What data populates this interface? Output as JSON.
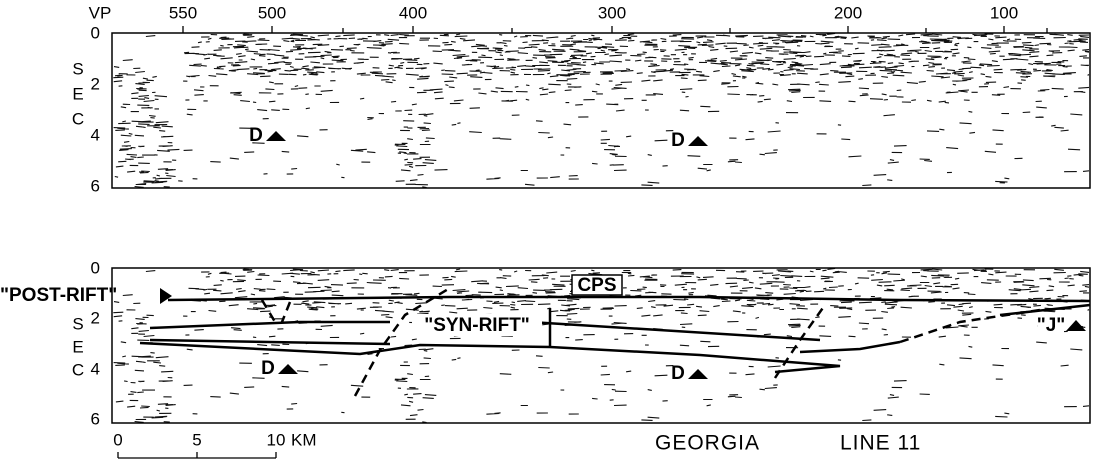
{
  "top_axis": {
    "label": "VP",
    "ticks": [
      "550",
      "500",
      "400",
      "300",
      "200",
      "100"
    ]
  },
  "panels": [
    {
      "y_ticks": [
        "0",
        "2",
        "4",
        "6"
      ],
      "y_label": [
        "S",
        "E",
        "C"
      ],
      "markers": [
        "D",
        "D"
      ]
    },
    {
      "y_ticks": [
        "0",
        "2",
        "4",
        "6"
      ],
      "y_label": [
        "S",
        "E",
        "C"
      ],
      "markers": [
        "D",
        "D"
      ],
      "annotations": [
        "\"POST-RIFT\"",
        "CPS",
        "\"SYN-RIFT\"",
        "\"J\""
      ]
    }
  ],
  "scale_bar": {
    "ticks": [
      "0",
      "5",
      "10"
    ],
    "unit": "KM"
  },
  "caption": [
    "GEORGIA",
    "LINE 11"
  ]
}
